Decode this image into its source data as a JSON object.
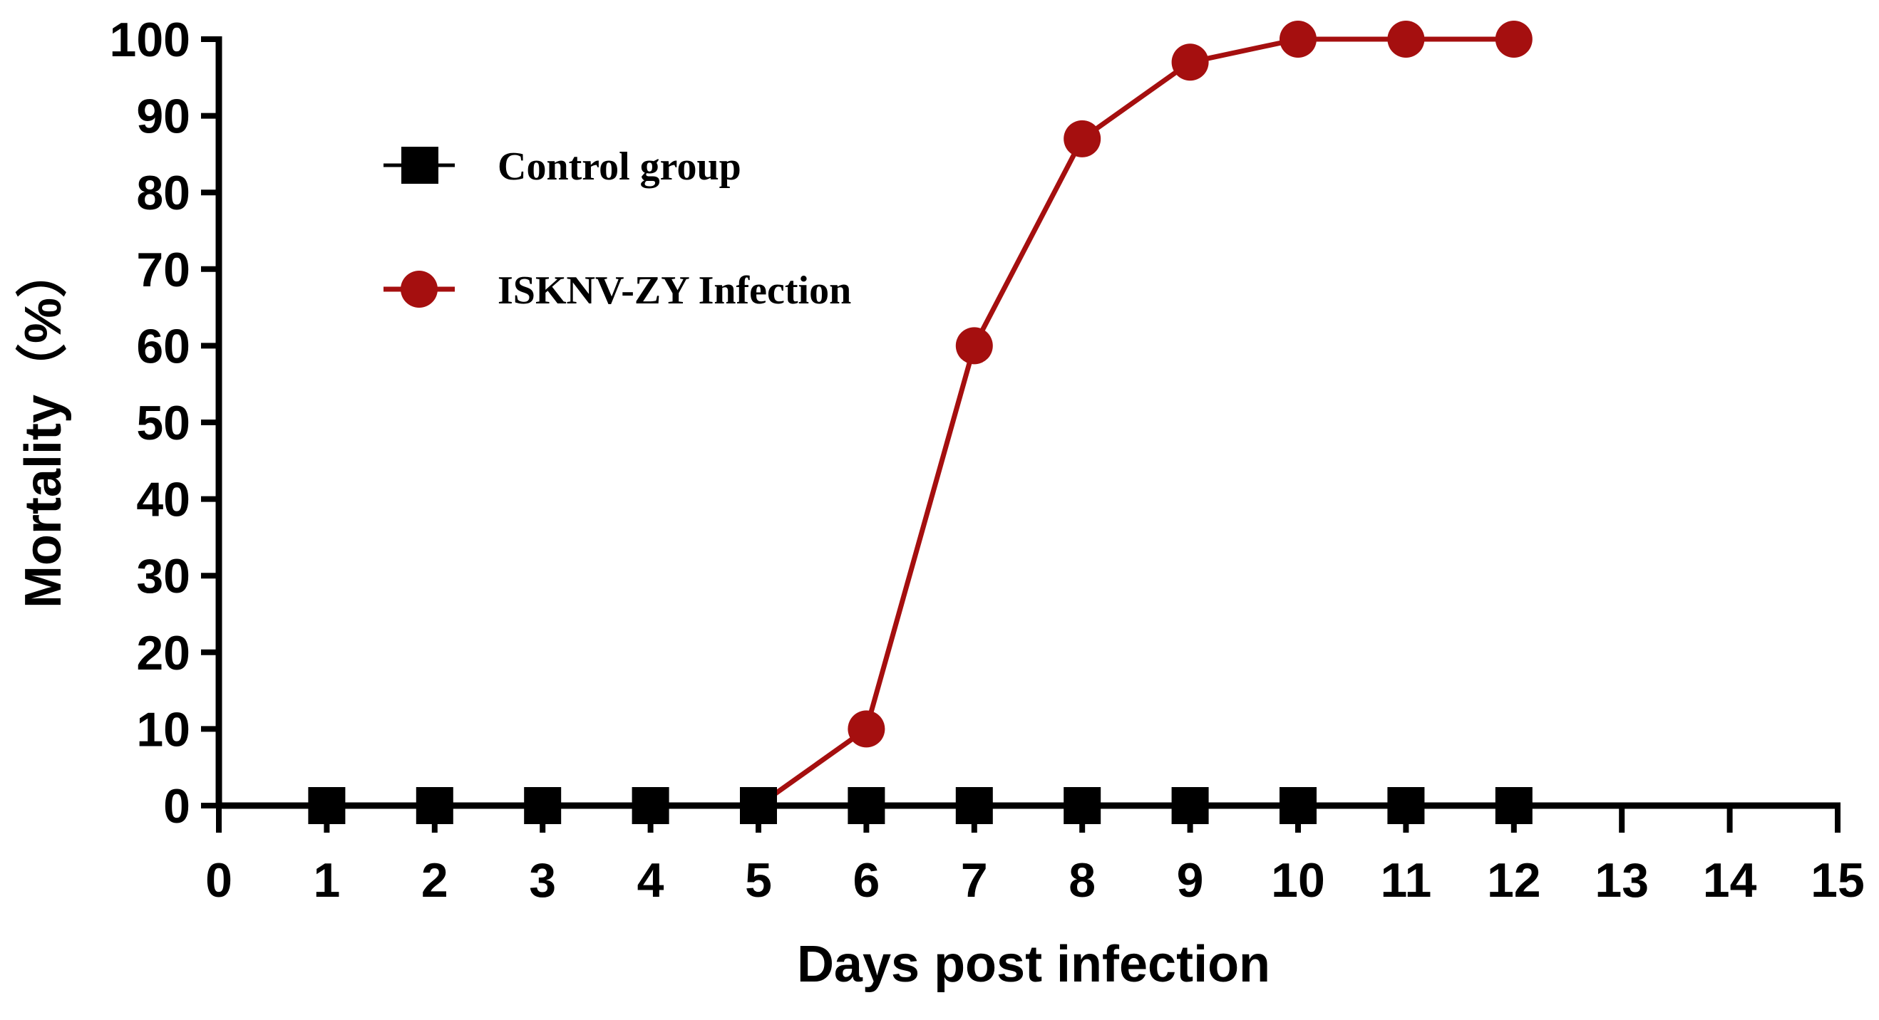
{
  "chart_data": {
    "type": "line",
    "title": "",
    "xlabel": "Days post infection",
    "ylabel": "Mortality（%）",
    "xlim": [
      0,
      15
    ],
    "ylim": [
      0,
      100
    ],
    "xticks": [
      0,
      1,
      2,
      3,
      4,
      5,
      6,
      7,
      8,
      9,
      10,
      11,
      12,
      13,
      14,
      15
    ],
    "yticks": [
      0,
      10,
      20,
      30,
      40,
      50,
      60,
      70,
      80,
      90,
      100
    ],
    "grid": false,
    "legend_position": "top-left",
    "series": [
      {
        "name": "Control group",
        "marker": "square",
        "color": "#000000",
        "x": [
          1,
          2,
          3,
          4,
          5,
          6,
          7,
          8,
          9,
          10,
          11,
          12
        ],
        "values": [
          0,
          0,
          0,
          0,
          0,
          0,
          0,
          0,
          0,
          0,
          0,
          0
        ]
      },
      {
        "name": "ISKNV-ZY Infection",
        "marker": "circle",
        "color": "#A50F0F",
        "x": [
          1,
          2,
          3,
          4,
          5,
          6,
          7,
          8,
          9,
          10,
          11,
          12
        ],
        "values": [
          0,
          0,
          0,
          0,
          0,
          10,
          60,
          87,
          97,
          100,
          100,
          100
        ]
      }
    ]
  }
}
